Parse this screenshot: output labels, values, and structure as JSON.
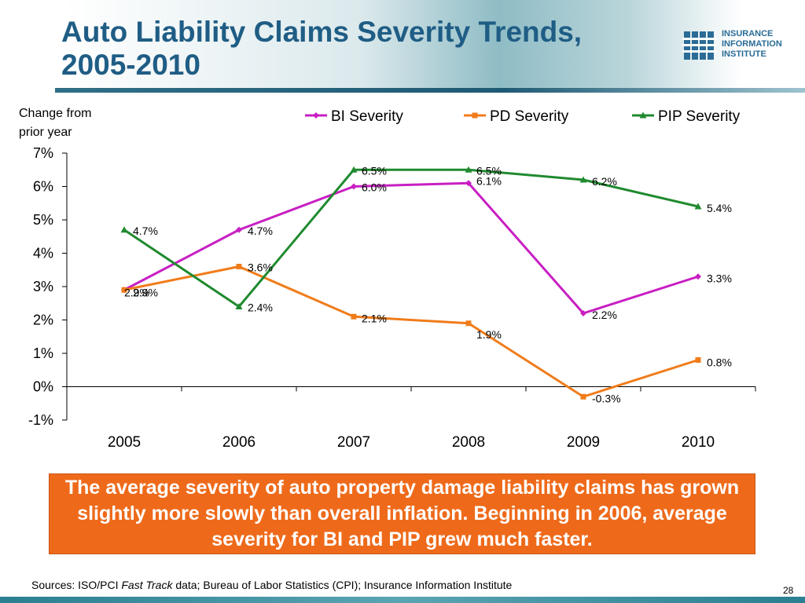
{
  "header": {
    "title_line1": "Auto Liability Claims Severity Trends,",
    "title_line2": "2005-2010"
  },
  "logo": {
    "line1": "INSURANCE",
    "line2": "INFORMATION",
    "line3": "INSTITUTE"
  },
  "chart_data": {
    "type": "line",
    "ylabel_line1": "Change from",
    "ylabel_line2": "prior year",
    "categories": [
      "2005",
      "2006",
      "2007",
      "2008",
      "2009",
      "2010"
    ],
    "ylim": [
      -1,
      7
    ],
    "yticks": [
      "-1%",
      "0%",
      "1%",
      "2%",
      "3%",
      "4%",
      "5%",
      "6%",
      "7%"
    ],
    "legend_position": "top",
    "series": [
      {
        "name": "BI Severity",
        "color": "#c81fc3",
        "marker": "diamond",
        "values": [
          2.9,
          4.7,
          6.0,
          6.1,
          2.2,
          3.3
        ],
        "labels": [
          "2.9%",
          "4.7%",
          "6.0%",
          "6.1%",
          "2.2%",
          "3.3%"
        ]
      },
      {
        "name": "PD Severity",
        "color": "#f07c1a",
        "marker": "square",
        "values": [
          2.9,
          3.6,
          2.1,
          1.9,
          -0.3,
          0.8
        ],
        "labels": [
          "2.9%",
          "3.6%",
          "2.1%",
          "1.9%",
          "-0.3%",
          "0.8%"
        ]
      },
      {
        "name": "PIP Severity",
        "color": "#1f8a2f",
        "marker": "triangle",
        "values": [
          4.7,
          2.4,
          6.5,
          6.5,
          6.2,
          5.4
        ],
        "labels": [
          "4.7%",
          "2.4%",
          "6.5%",
          "6.5%",
          "6.2%",
          "5.4%"
        ]
      }
    ]
  },
  "callout": {
    "text": "The average severity of auto property damage liability claims has grown slightly more slowly than overall inflation. Beginning in 2006, average severity for BI and PIP grew much faster."
  },
  "footer": {
    "sources_prefix": "Sources: ISO/PCI ",
    "sources_italic": "Fast Track",
    "sources_suffix": " data; Bureau of Labor Statistics (CPI); Insurance Information Institute",
    "page_number": "28"
  }
}
